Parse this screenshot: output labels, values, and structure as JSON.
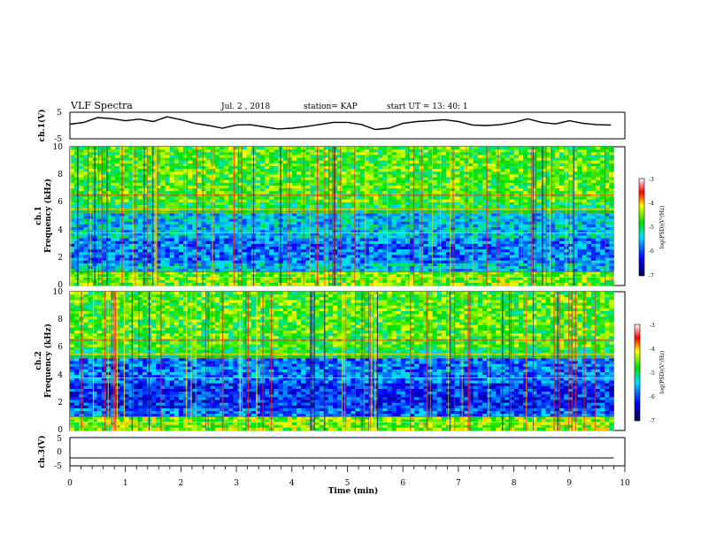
{
  "header": {
    "title": "VLF Spectra",
    "date": "Jul. 2 , 2018",
    "station": "station= KAP",
    "start": "start UT =   13: 40: 1"
  },
  "chart_data": [
    {
      "type": "line",
      "id": "ch1_waveform",
      "ylabel": "ch.1(V)",
      "ylim": [
        -5,
        5
      ],
      "yticks": [
        "5",
        "-5"
      ],
      "xlim": [
        0,
        10
      ],
      "x": [
        0.0,
        0.25,
        0.5,
        0.75,
        1.0,
        1.25,
        1.5,
        1.75,
        2.0,
        2.25,
        2.5,
        2.75,
        3.0,
        3.25,
        3.5,
        3.75,
        4.0,
        4.25,
        4.5,
        4.75,
        5.0,
        5.25,
        5.5,
        5.75,
        6.0,
        6.25,
        6.5,
        6.75,
        7.0,
        7.25,
        7.5,
        7.75,
        8.0,
        8.25,
        8.5,
        8.75,
        9.0,
        9.25,
        9.5,
        9.75
      ],
      "y": [
        0.5,
        1.2,
        3.0,
        2.6,
        1.8,
        2.4,
        1.5,
        3.3,
        2.2,
        0.8,
        0.0,
        -1.0,
        0.2,
        0.3,
        -0.5,
        -1.3,
        -1.0,
        -0.4,
        0.4,
        1.2,
        1.2,
        0.4,
        -1.5,
        -1.0,
        0.8,
        1.5,
        1.8,
        2.2,
        1.5,
        0.2,
        0.0,
        0.3,
        1.2,
        2.5,
        1.2,
        0.6,
        1.8,
        0.8,
        0.3,
        0.2
      ]
    },
    {
      "type": "heatmap",
      "id": "ch1_spectrogram",
      "ylabel_top": "ch.1",
      "ylabel": "Frequency (kHz)",
      "ylim": [
        0,
        10
      ],
      "yticks": [
        "0",
        "2",
        "4",
        "6",
        "8",
        "10"
      ],
      "xlim": [
        0,
        10
      ],
      "colorbar": {
        "label": "log(PSD)(V²/Hz)",
        "range": [
          -7,
          -3
        ],
        "ticks": [
          "-3",
          "-4",
          "-5",
          "-6",
          "-7"
        ]
      }
    },
    {
      "type": "heatmap",
      "id": "ch2_spectrogram",
      "ylabel_top": "ch.2",
      "ylabel": "Frequency (kHz)",
      "ylim": [
        0,
        10
      ],
      "yticks": [
        "0",
        "2",
        "4",
        "6",
        "8",
        "10"
      ],
      "xlim": [
        0,
        10
      ],
      "colorbar": {
        "label": "log(PSD)(V²/Hz)",
        "range": [
          -7,
          -3
        ],
        "ticks": [
          "-3",
          "-4",
          "-5",
          "-6",
          "-7"
        ]
      }
    },
    {
      "type": "line",
      "id": "ch3_waveform",
      "ylabel": "ch.3(V)",
      "ylim": [
        -5,
        5
      ],
      "yticks": [
        "5",
        "0",
        "-5"
      ],
      "xlim": [
        0,
        10
      ],
      "x": [
        0,
        9.8
      ],
      "y": [
        -2.2,
        -2.2
      ]
    }
  ],
  "xaxis": {
    "label": "Time (min)",
    "ticks": [
      "0",
      "1",
      "2",
      "3",
      "4",
      "5",
      "6",
      "7",
      "8",
      "9",
      "10"
    ]
  }
}
